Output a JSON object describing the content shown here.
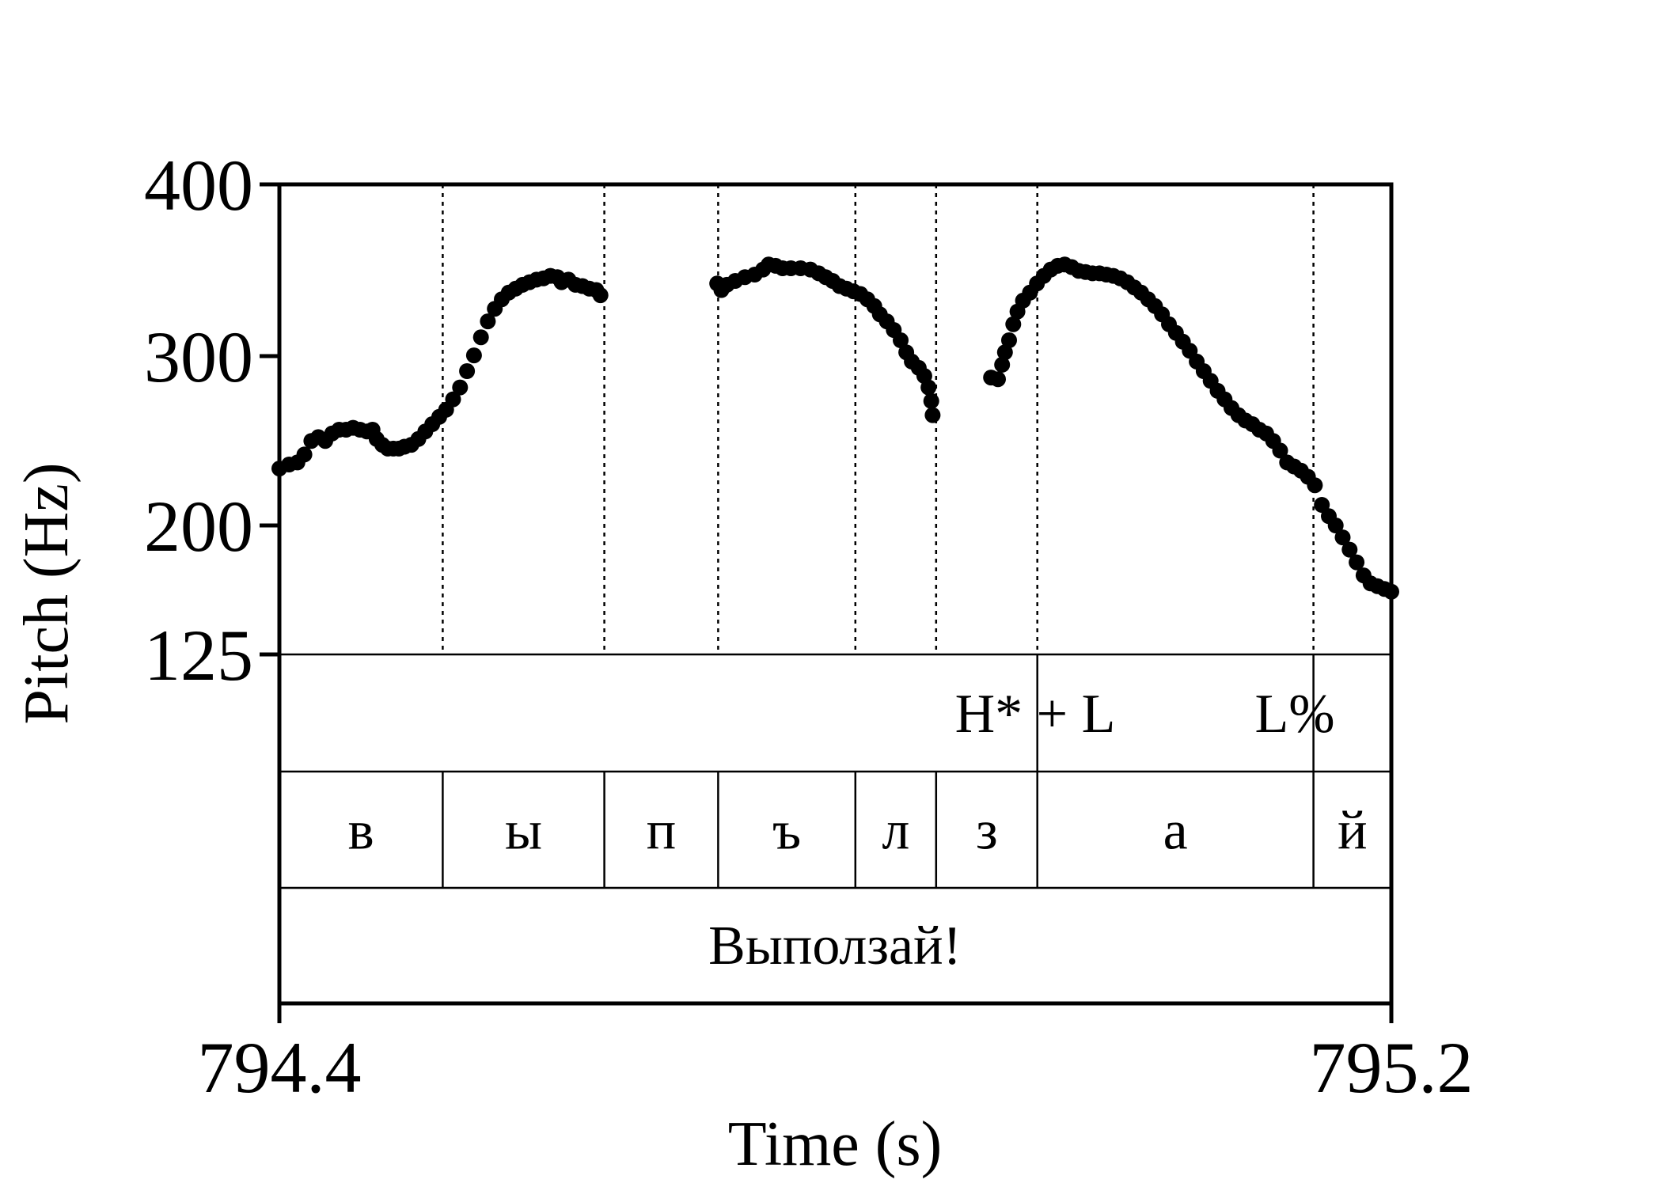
{
  "chart_data": {
    "type": "scatter",
    "xlabel": "Time (s)",
    "ylabel": "Pitch (Hz)",
    "xlim": [
      794.4,
      795.2
    ],
    "ylim": [
      125,
      400
    ],
    "y_ticks": [
      "400",
      "300",
      "200",
      "125"
    ],
    "x_ticks": [
      "794.4",
      "795.2"
    ],
    "y_scale": "log",
    "grid": false,
    "segment_boundaries": [
      794.5175,
      794.6338,
      794.7157,
      794.8144,
      794.8725,
      794.9453,
      795.144
    ],
    "tiers": {
      "tones": [
        {
          "label": "H* + L",
          "time": 794.945
        },
        {
          "label": "L%",
          "time": 795.144
        }
      ],
      "segments": [
        {
          "label": "в",
          "start": 794.4,
          "end": 794.5175
        },
        {
          "label": "ы",
          "start": 794.5175,
          "end": 794.6338
        },
        {
          "label": "п",
          "start": 794.6338,
          "end": 794.7157
        },
        {
          "label": "ъ",
          "start": 794.7157,
          "end": 794.8144
        },
        {
          "label": "л",
          "start": 794.8144,
          "end": 794.8725
        },
        {
          "label": "з",
          "start": 794.8725,
          "end": 794.9453
        },
        {
          "label": "а",
          "start": 794.9453,
          "end": 795.144
        },
        {
          "label": "й",
          "start": 795.144,
          "end": 795.2
        }
      ],
      "word": "Выползай!"
    },
    "series": [
      {
        "points": [
          [
            794.4,
            198
          ],
          [
            794.407,
            200
          ],
          [
            794.413,
            201
          ],
          [
            794.418,
            205
          ],
          [
            794.423,
            212
          ],
          [
            794.428,
            214
          ],
          [
            794.433,
            212
          ],
          [
            794.438,
            216
          ],
          [
            794.443,
            218
          ],
          [
            794.448,
            218
          ],
          [
            794.453,
            219
          ],
          [
            794.458,
            218
          ],
          [
            794.463,
            217
          ],
          [
            794.467,
            218
          ],
          [
            794.47,
            213
          ],
          [
            794.474,
            210
          ],
          [
            794.478,
            208
          ],
          [
            794.482,
            208
          ],
          [
            794.486,
            208
          ],
          [
            794.49,
            209
          ],
          [
            794.495,
            210
          ],
          [
            794.5,
            213
          ],
          [
            794.505,
            217
          ],
          [
            794.51,
            221
          ],
          [
            794.515,
            225
          ],
          [
            794.52,
            229
          ],
          [
            794.525,
            235
          ],
          [
            794.53,
            242
          ],
          [
            794.535,
            252
          ],
          [
            794.54,
            262
          ],
          [
            794.545,
            274
          ],
          [
            794.55,
            285
          ],
          [
            794.555,
            294
          ],
          [
            794.56,
            301
          ],
          [
            794.565,
            306
          ],
          [
            794.57,
            309
          ],
          [
            794.575,
            312
          ],
          [
            794.58,
            314
          ],
          [
            794.585,
            316
          ],
          [
            794.59,
            317
          ],
          [
            794.595,
            319
          ],
          [
            794.6,
            318
          ],
          [
            794.603,
            314
          ],
          [
            794.608,
            316
          ],
          [
            794.613,
            312
          ],
          [
            794.618,
            311
          ],
          [
            794.623,
            309
          ],
          [
            794.628,
            308
          ],
          [
            794.631,
            304
          ],
          [
            794.715,
            313
          ],
          [
            794.718,
            308
          ],
          [
            794.722,
            312
          ],
          [
            794.728,
            315
          ],
          [
            794.735,
            318
          ],
          [
            794.742,
            320
          ],
          [
            794.748,
            324
          ],
          [
            794.752,
            328
          ],
          [
            794.757,
            327
          ],
          [
            794.762,
            325
          ],
          [
            794.768,
            325
          ],
          [
            794.775,
            325
          ],
          [
            794.782,
            324
          ],
          [
            794.788,
            321
          ],
          [
            794.793,
            318
          ],
          [
            794.798,
            315
          ],
          [
            794.803,
            311
          ],
          [
            794.808,
            309
          ],
          [
            794.813,
            307
          ],
          [
            794.818,
            305
          ],
          [
            794.823,
            301
          ],
          [
            794.828,
            296
          ],
          [
            794.832,
            290
          ],
          [
            794.837,
            285
          ],
          [
            794.842,
            279
          ],
          [
            794.847,
            272
          ],
          [
            794.851,
            264
          ],
          [
            794.855,
            258
          ],
          [
            794.86,
            254
          ],
          [
            794.864,
            249
          ],
          [
            794.867,
            242
          ],
          [
            794.869,
            234
          ],
          [
            794.87,
            226
          ],
          [
            794.912,
            248
          ],
          [
            794.917,
            247
          ],
          [
            794.92,
            256
          ],
          [
            794.922,
            264
          ],
          [
            794.925,
            272
          ],
          [
            794.928,
            283
          ],
          [
            794.931,
            292
          ],
          [
            794.935,
            300
          ],
          [
            794.94,
            306
          ],
          [
            794.945,
            313
          ],
          [
            794.95,
            319
          ],
          [
            794.955,
            324
          ],
          [
            794.96,
            327
          ],
          [
            794.965,
            328
          ],
          [
            794.97,
            326
          ],
          [
            794.975,
            323
          ],
          [
            794.98,
            322
          ],
          [
            794.985,
            321
          ],
          [
            794.99,
            321
          ],
          [
            794.995,
            320
          ],
          [
            795.0,
            319
          ],
          [
            795.005,
            317
          ],
          [
            795.01,
            314
          ],
          [
            795.015,
            310
          ],
          [
            795.02,
            306
          ],
          [
            795.025,
            301
          ],
          [
            795.03,
            296
          ],
          [
            795.035,
            290
          ],
          [
            795.04,
            283
          ],
          [
            795.045,
            277
          ],
          [
            795.05,
            271
          ],
          [
            795.055,
            265
          ],
          [
            795.06,
            258
          ],
          [
            795.065,
            252
          ],
          [
            795.07,
            246
          ],
          [
            795.075,
            240
          ],
          [
            795.08,
            235
          ],
          [
            795.085,
            230
          ],
          [
            795.09,
            226
          ],
          [
            795.095,
            223
          ],
          [
            795.1,
            221
          ],
          [
            795.105,
            218
          ],
          [
            795.11,
            216
          ],
          [
            795.115,
            212
          ],
          [
            795.12,
            207
          ],
          [
            795.125,
            201
          ],
          [
            795.13,
            199
          ],
          [
            795.135,
            197
          ],
          [
            795.14,
            194
          ],
          [
            795.145,
            190
          ],
          [
            795.15,
            181
          ],
          [
            795.155,
            176
          ],
          [
            795.16,
            172
          ],
          [
            795.165,
            167
          ],
          [
            795.17,
            162
          ],
          [
            795.175,
            157
          ],
          [
            795.18,
            152
          ],
          [
            795.185,
            149
          ],
          [
            795.19,
            148
          ],
          [
            795.195,
            147
          ],
          [
            795.2,
            146
          ]
        ]
      }
    ]
  }
}
